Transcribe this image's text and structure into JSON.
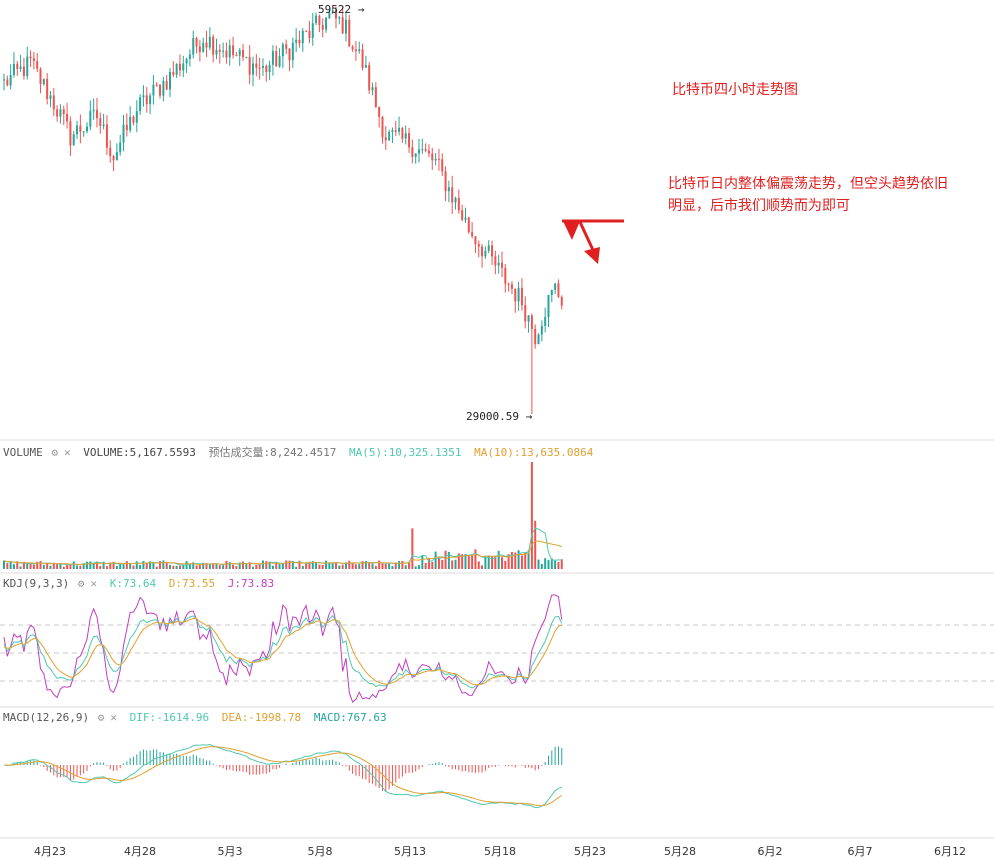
{
  "colors": {
    "up": "#26a69a",
    "down": "#ef5350",
    "ma5": "#4ec9b0",
    "ma10": "#e0a030",
    "kdj_k": "#4ec9b0",
    "kdj_d": "#e0a030",
    "kdj_j": "#c03fc0",
    "annotation": "#e02020",
    "grid": "#c8c8c8"
  },
  "annotations": {
    "title": "比特币四小时走势图",
    "body_line1": "比特币日内整体偏震荡走势，但空头趋势依旧",
    "body_line2": "明显，后市我们顺势而为即可"
  },
  "price_labels": {
    "high": "59522 →",
    "low": "29000.59 →"
  },
  "volume_header": {
    "name": "VOLUME",
    "volume": "VOLUME:5,167.5593",
    "est": "预估成交量:8,242.4517",
    "ma5": "MA(5):10,325.1351",
    "ma10": "MA(10):13,635.0864"
  },
  "kdj_header": {
    "name": "KDJ(9,3,3)",
    "k": "K:73.64",
    "d": "D:73.55",
    "j": "J:73.83"
  },
  "macd_header": {
    "name": "MACD(12,26,9)",
    "dif": "DIF:-1614.96",
    "dea": "DEA:-1998.78",
    "macd": "MACD:767.63"
  },
  "x_ticks": [
    "4月23",
    "4月28",
    "5月3",
    "5月8",
    "5月13",
    "5月18",
    "5月23",
    "5月28",
    "6月2",
    "6月7",
    "6月12"
  ],
  "chart_data": {
    "type": "candlestick",
    "x_range": [
      "4月21",
      "6月14"
    ],
    "price_high": 59522,
    "price_low": 29000.59,
    "close_path": [
      {
        "bar": 0,
        "close": 54000
      },
      {
        "bar": 8,
        "close": 55500
      },
      {
        "bar": 15,
        "close": 52500
      },
      {
        "bar": 20,
        "close": 50000
      },
      {
        "bar": 28,
        "close": 51500
      },
      {
        "bar": 33,
        "close": 48500
      },
      {
        "bar": 40,
        "close": 52000
      },
      {
        "bar": 50,
        "close": 54500
      },
      {
        "bar": 60,
        "close": 57500
      },
      {
        "bar": 70,
        "close": 56000
      },
      {
        "bar": 78,
        "close": 55000
      },
      {
        "bar": 88,
        "close": 57000
      },
      {
        "bar": 98,
        "close": 59000
      },
      {
        "bar": 102,
        "close": 58500
      },
      {
        "bar": 108,
        "close": 55500
      },
      {
        "bar": 115,
        "close": 50000
      },
      {
        "bar": 122,
        "close": 49500
      },
      {
        "bar": 130,
        "close": 48000
      },
      {
        "bar": 140,
        "close": 43000
      },
      {
        "bar": 150,
        "close": 39500
      },
      {
        "bar": 156,
        "close": 37500
      },
      {
        "bar": 160,
        "close": 35000
      },
      {
        "bar": 163,
        "close": 37000
      },
      {
        "bar": 166,
        "close": 38500
      },
      {
        "bar": 168,
        "close": 37700
      }
    ],
    "indicators": {
      "volume": {
        "last": 5167.5593,
        "estimate": 8242.4517,
        "ma5": 10325.1351,
        "ma10": 13635.0864
      },
      "kdj": {
        "k": 73.64,
        "d": 73.55,
        "j": 73.83
      },
      "macd": {
        "dif": -1614.96,
        "dea": -1998.78,
        "macd": 767.63
      }
    }
  }
}
